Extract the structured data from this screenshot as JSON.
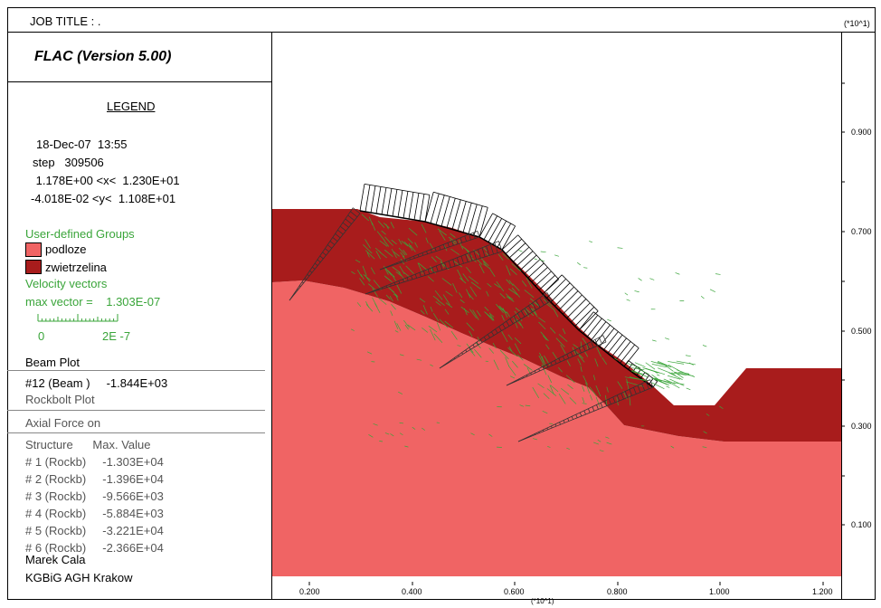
{
  "header": {
    "job_title": "JOB TITLE : .",
    "scale_unit_top": "(*10^1)"
  },
  "software": {
    "name": "FLAC (Version 5.00)"
  },
  "legend": {
    "title": "LEGEND",
    "date_time": "18-Dec-07  13:55",
    "step": "step   309506",
    "x_range": " 1.178E+00 <x<  1.230E+01",
    "y_range": "-4.018E-02 <y<  1.108E+01",
    "groups_title": "User-defined Groups",
    "groups": [
      {
        "label": "podloze",
        "color": "#f06464"
      },
      {
        "label": "zwietrzelina",
        "color": "#a81c1c"
      }
    ],
    "velocity_title": "Velocity vectors",
    "max_vector": "max vector =    1.303E-07",
    "scale_min": "0",
    "scale_max": "2E -7",
    "beam_plot_title": "Beam Plot",
    "beam_entry": "#12 (Beam )     -1.844E+03",
    "rockbolt_title": "Rockbolt Plot",
    "axial_title": "Axial Force on",
    "structure_header": "Structure      Max. Value",
    "structures": [
      "# 1 (Rockb)     -1.303E+04",
      "# 2 (Rockb)     -1.396E+04",
      "# 3 (Rockb)     -9.566E+03",
      "# 4 (Rockb)     -5.884E+03",
      "# 5 (Rockb)     -3.221E+04",
      "# 6 (Rockb)     -2.366E+04"
    ],
    "author": "Marek Cala",
    "institution": "KGBiG AGH Krakow"
  },
  "plot": {
    "x_ticks": [
      "0.200",
      "0.400",
      "0.600",
      "0.800",
      "1.000",
      "1.200"
    ],
    "x_unit": "(*10^1)",
    "y_ticks": [
      "0.900",
      "0.700",
      "0.500",
      "0.300",
      "0.100"
    ],
    "colors": {
      "bedrock": "#f06464",
      "weathered": "#a81c1c",
      "vectors": "#3aa53a",
      "bolts": "#333333"
    }
  }
}
